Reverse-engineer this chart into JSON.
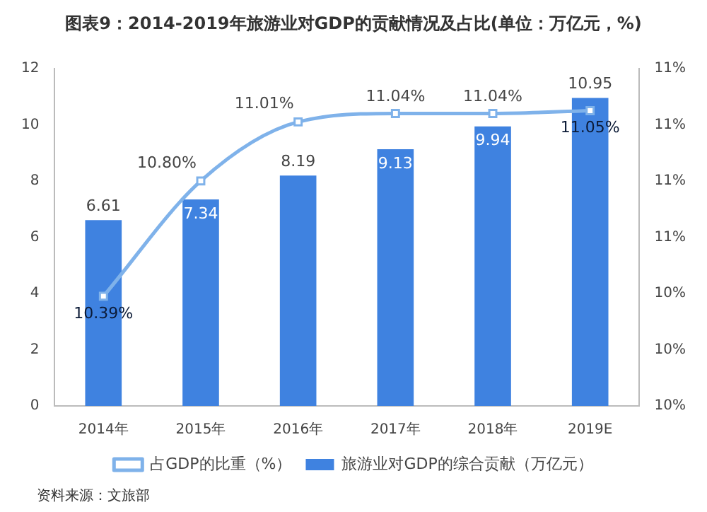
{
  "chart_data": {
    "type": "bar",
    "title": "图表9：2014-2019年旅游业对GDP的贡献情况及占比(单位：万亿元，%)",
    "categories": [
      "2014年",
      "2015年",
      "2016年",
      "2017年",
      "2018年",
      "2019E"
    ],
    "series": [
      {
        "name": "旅游业对GDP的综合贡献（万亿元）",
        "color": "#3f82e0",
        "values": [
          6.61,
          7.34,
          8.19,
          9.13,
          9.94,
          10.95
        ],
        "value_labels": [
          "6.61",
          "7.34",
          "8.19",
          "9.13",
          "9.94",
          "10.95"
        ]
      },
      {
        "name": "占GDP的比重（%）",
        "type": "line",
        "axis": "y2",
        "color": "#7fb2ea",
        "marker": "square",
        "values": [
          10.39,
          10.8,
          11.01,
          11.04,
          11.04,
          11.05
        ],
        "value_labels": [
          "10.39%",
          "10.80%",
          "11.01%",
          "11.04%",
          "11.04%",
          "11.05%"
        ]
      }
    ],
    "ylim": [
      0,
      12
    ],
    "yticks": [
      0,
      2,
      4,
      6,
      8,
      10,
      12
    ],
    "y2lim": [
      10,
      11.2
    ],
    "y2ticks": [
      {
        "value": 10,
        "label": "10%"
      },
      {
        "value": 10.2,
        "label": "10%"
      },
      {
        "value": 10.4,
        "label": "10%"
      },
      {
        "value": 10.6,
        "label": "11%"
      },
      {
        "value": 10.8,
        "label": "11%"
      },
      {
        "value": 11,
        "label": "11%"
      },
      {
        "value": 11.2,
        "label": "11%"
      }
    ],
    "grid": false,
    "legend": "bottom",
    "annotations": [
      "资料来源：文旅部"
    ]
  }
}
